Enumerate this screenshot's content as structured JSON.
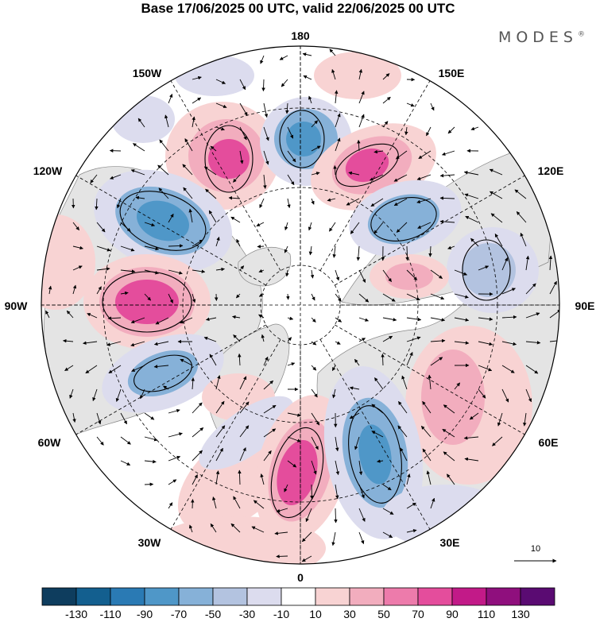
{
  "title": "Base 17/06/2025 00 UTC, valid 22/06/2025 00 UTC",
  "brand": "MODES",
  "brand_mark": "®",
  "longitude_labels": [
    "180",
    "150E",
    "120E",
    "90E",
    "60E",
    "30E",
    "0",
    "30W",
    "60W",
    "90W",
    "120W",
    "150W"
  ],
  "vector_reference": "10",
  "colorbar": {
    "ticks": [
      "-130",
      "-110",
      "-90",
      "-70",
      "-50",
      "-30",
      "-10",
      "10",
      "30",
      "50",
      "70",
      "90",
      "110",
      "130"
    ],
    "colors": [
      "#0e3d5e",
      "#135f8f",
      "#2a7ab4",
      "#4f97c8",
      "#86b1d8",
      "#b3c3e0",
      "#dcdcee",
      "#ffffff",
      "#f8d3d3",
      "#f2adbe",
      "#ed7bab",
      "#e44d9c",
      "#c21a88",
      "#8f0f7d",
      "#5a0b72"
    ]
  },
  "colors": {
    "land": "#e4e4e4",
    "positive": "#e44d9c",
    "negative": "#2a7ab4"
  }
}
